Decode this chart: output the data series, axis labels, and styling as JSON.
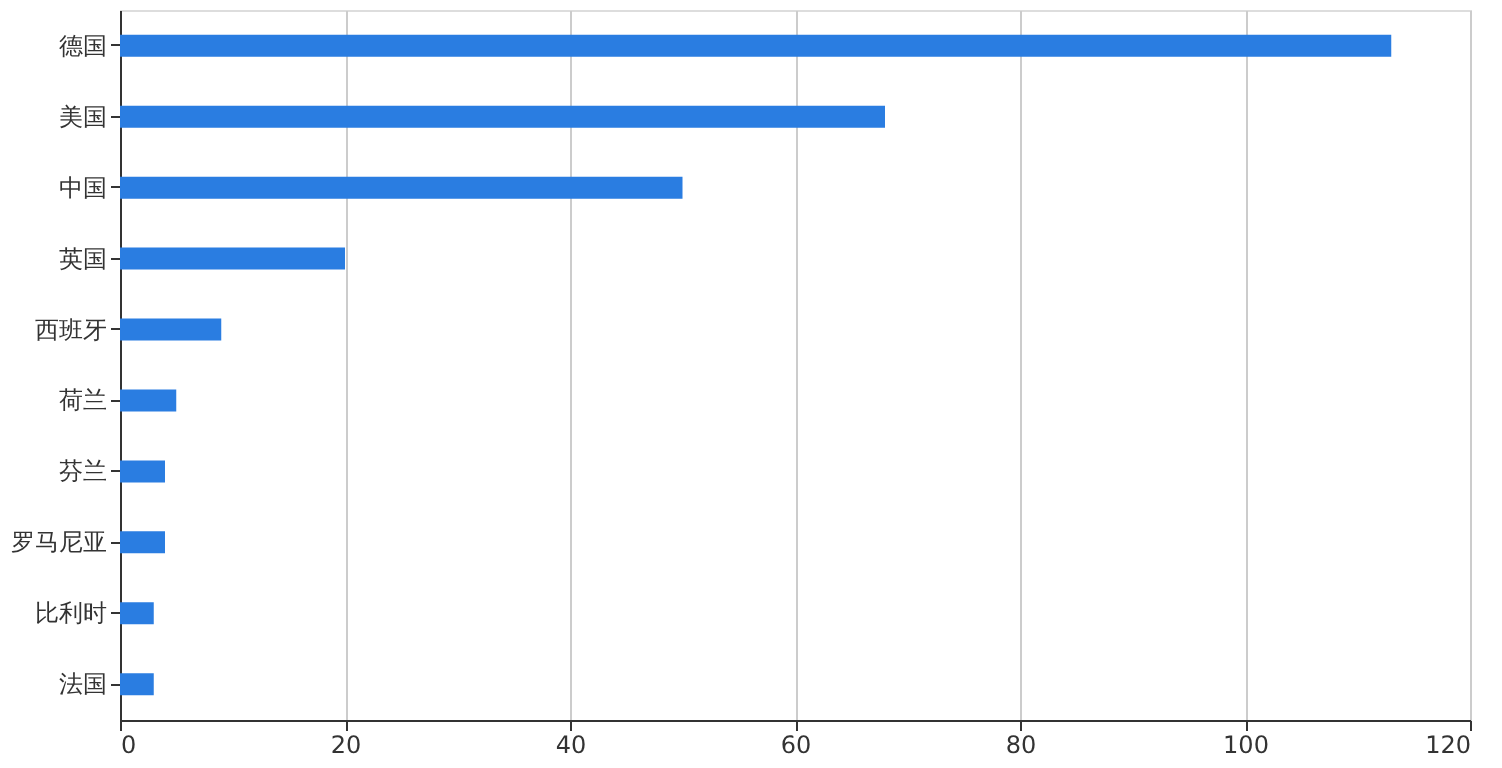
{
  "chart_data": {
    "type": "bar",
    "orientation": "horizontal",
    "categories": [
      "德国",
      "美国",
      "中国",
      "英国",
      "西班牙",
      "荷兰",
      "芬兰",
      "罗马尼亚",
      "比利时",
      "法国"
    ],
    "values": [
      113,
      68,
      50,
      20,
      9,
      5,
      4,
      4,
      3,
      3
    ],
    "color": "#2a7de1",
    "xlim": [
      0,
      120
    ],
    "xticks": [
      0,
      20,
      40,
      60,
      80,
      100,
      120
    ],
    "grid": "x"
  }
}
